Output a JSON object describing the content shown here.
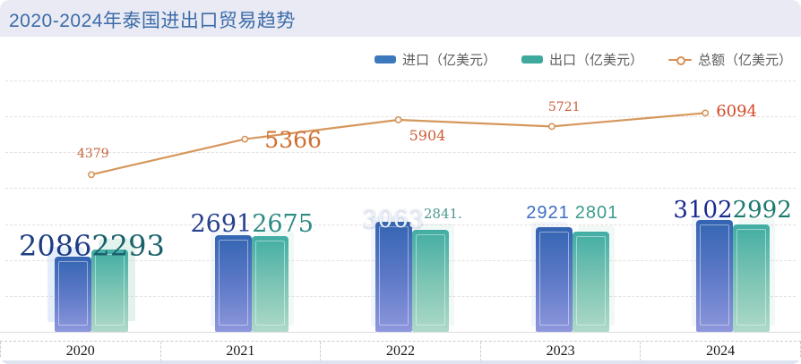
{
  "header": {
    "title": "2020-2024年泰国进出口贸易趋势"
  },
  "legend": {
    "items": [
      {
        "label": "进口（亿美元）",
        "marker": "bar",
        "color": "#3b78be"
      },
      {
        "label": "出口（亿美元）",
        "marker": "bar",
        "color": "#3fa99d"
      },
      {
        "label": "总额（亿美元）",
        "marker": "line",
        "color": "#dd9055"
      }
    ]
  },
  "chart_data": {
    "type": "bar+line",
    "title": "2020-2024年泰国进出口贸易趋势",
    "categories": [
      "2020",
      "2021",
      "2022",
      "2023",
      "2024"
    ],
    "series": [
      {
        "name": "进口（亿美元）",
        "type": "bar",
        "values": [
          2086,
          2691,
          3063,
          2921,
          3102
        ],
        "labels": [
          "2086",
          "2691",
          "3063",
          "2921",
          "3102"
        ],
        "color_gradient": [
          "#3465b2",
          "#8d97dc"
        ]
      },
      {
        "name": "出口（亿美元）",
        "type": "bar",
        "values": [
          2293,
          2675,
          2841,
          2801,
          2992
        ],
        "labels": [
          "2293",
          "2675",
          "2841.",
          "2801",
          "2992"
        ],
        "color_gradient": [
          "#42ada4",
          "#aed9c8"
        ]
      },
      {
        "name": "总额（亿美元）",
        "type": "line",
        "values": [
          4379,
          5366,
          5904,
          5721,
          6094
        ],
        "labels": [
          "4379",
          "5366",
          "5904",
          "5721",
          "6094"
        ],
        "color": "#d6975c"
      }
    ],
    "xlabel": "",
    "ylabel": "亿美元",
    "ylim": [
      0,
      7000
    ],
    "grid": true,
    "legend_position": "top-right"
  }
}
